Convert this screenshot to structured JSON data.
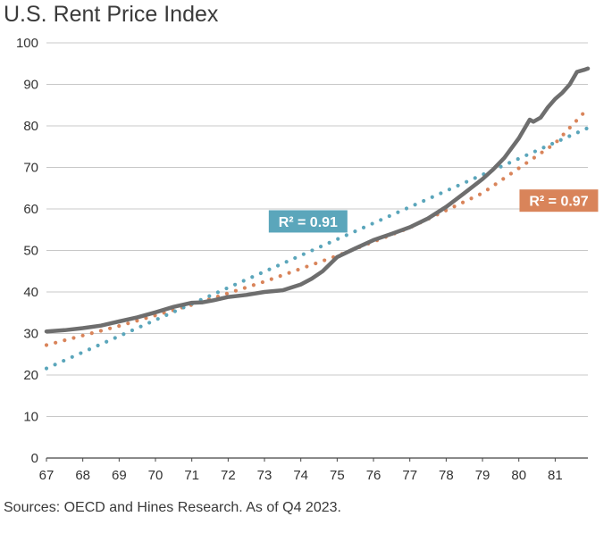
{
  "chart_data": {
    "type": "line",
    "title": "U.S. Rent Price Index",
    "xlabel": "",
    "ylabel": "",
    "xlim": [
      67,
      81.9
    ],
    "ylim": [
      0,
      100
    ],
    "x_ticks": [
      "67",
      "68",
      "69",
      "70",
      "71",
      "72",
      "73",
      "74",
      "75",
      "76",
      "77",
      "78",
      "79",
      "80",
      "81"
    ],
    "y_ticks": [
      "0",
      "10",
      "20",
      "30",
      "40",
      "50",
      "60",
      "70",
      "80",
      "90",
      "100"
    ],
    "grid": true,
    "series": [
      {
        "name": "Rent Price Index",
        "color": "#6e6e6e",
        "style": "solid",
        "x": [
          67.0,
          67.5,
          68.0,
          68.5,
          69.0,
          69.5,
          70.0,
          70.5,
          71.0,
          71.3,
          71.6,
          72.0,
          72.5,
          73.0,
          73.5,
          74.0,
          74.3,
          74.6,
          75.0,
          75.5,
          76.0,
          76.5,
          77.0,
          77.5,
          78.0,
          78.5,
          79.0,
          79.3,
          79.6,
          80.0,
          80.3,
          80.4,
          80.6,
          80.8,
          81.0,
          81.2,
          81.4,
          81.6,
          81.8,
          81.9
        ],
        "y": [
          30.5,
          30.8,
          31.3,
          31.9,
          32.9,
          33.9,
          35.1,
          36.4,
          37.4,
          37.5,
          38.0,
          38.8,
          39.3,
          40.0,
          40.4,
          41.8,
          43.2,
          45.0,
          48.4,
          50.5,
          52.5,
          54.0,
          55.6,
          57.7,
          60.5,
          63.8,
          67.2,
          69.6,
          72.3,
          77.0,
          81.5,
          81.0,
          82.0,
          84.5,
          86.5,
          88.0,
          90.0,
          93.0,
          93.5,
          93.8
        ]
      },
      {
        "name": "Trend R² = 0.97",
        "color": "#d9845a",
        "style": "dotted",
        "x": [
          67.0,
          69.0,
          71.0,
          73.0,
          75.0,
          77.0,
          79.0,
          81.0,
          81.9
        ],
        "y": [
          27.2,
          31.8,
          36.9,
          42.5,
          48.7,
          55.5,
          63.8,
          75.8,
          84.2
        ]
      },
      {
        "name": "Trend R² = 0.91",
        "color": "#5ba6bb",
        "style": "dotted",
        "x": [
          67.0,
          81.9
        ],
        "y": [
          21.6,
          79.5
        ]
      }
    ],
    "annotations": [
      {
        "text": "R² = 0.91",
        "color": "#5ba6bb",
        "series": "Trend R² = 0.91"
      },
      {
        "text": "R² = 0.97",
        "color": "#d9845a",
        "series": "Trend R² = 0.97"
      }
    ]
  },
  "source_note": "Sources: OECD and Hines Research. As of Q4 2023."
}
